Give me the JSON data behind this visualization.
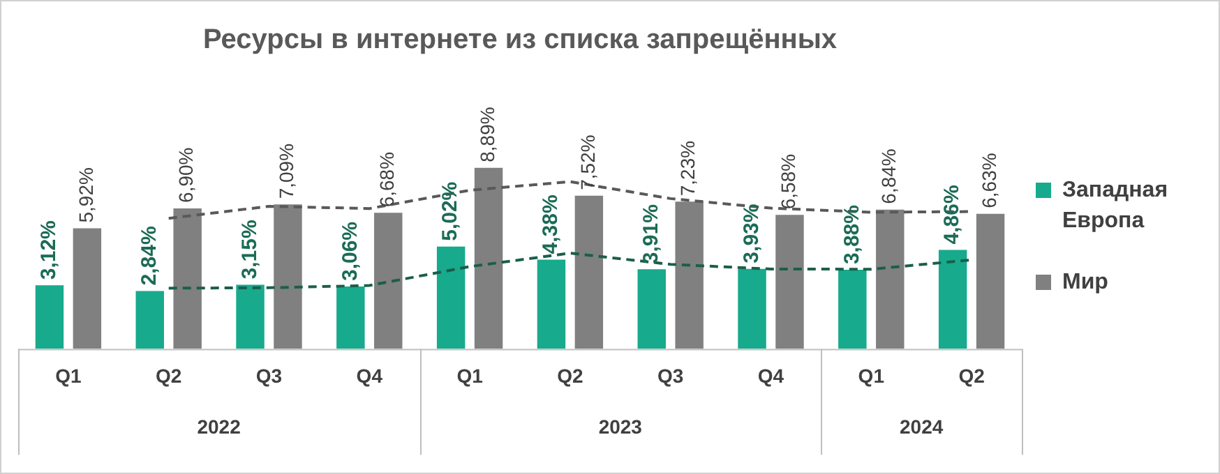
{
  "chart_data": {
    "type": "bar",
    "title": "Ресурсы в интернете из списка запрещённых",
    "categories": [
      "Q1",
      "Q2",
      "Q3",
      "Q4",
      "Q1",
      "Q2",
      "Q3",
      "Q4",
      "Q1",
      "Q2"
    ],
    "series": [
      {
        "name": "Западная Европа",
        "color": "#17aa8c",
        "values": [
          3.12,
          2.84,
          3.15,
          3.06,
          5.02,
          4.38,
          3.91,
          3.93,
          3.88,
          4.86
        ],
        "value_labels": [
          "3,12%",
          "2,84%",
          "3,15%",
          "3,06%",
          "5,02%",
          "4,38%",
          "3,91%",
          "3,93%",
          "3,88%",
          "4,86%"
        ]
      },
      {
        "name": "Мир",
        "color": "#808080",
        "values": [
          5.92,
          6.9,
          7.09,
          6.68,
          8.89,
          7.52,
          7.23,
          6.58,
          6.84,
          6.63
        ],
        "value_labels": [
          "5,92%",
          "6,90%",
          "7,09%",
          "6,68%",
          "8,89%",
          "7,52%",
          "7,23%",
          "6,58%",
          "6,84%",
          "6,63%"
        ]
      },
      {
        "type": "line",
        "color": "#1b5e4b",
        "line_style": "dashed",
        "values": [
          null,
          2.98,
          3.0,
          3.11,
          4.04,
          4.7,
          4.15,
          3.92,
          3.91,
          4.37
        ]
      },
      {
        "type": "line",
        "color": "#595959",
        "line_style": "dashed",
        "values": [
          null,
          6.41,
          7.0,
          6.89,
          7.79,
          8.21,
          7.38,
          6.91,
          6.71,
          6.74
        ]
      }
    ],
    "annotations": [
      "2022",
      "2023",
      "2024"
    ],
    "grid": false,
    "legend": "right",
    "marker": "none"
  }
}
